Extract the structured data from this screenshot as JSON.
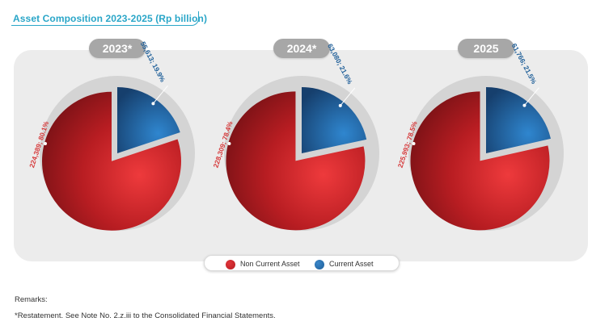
{
  "title": "Asset Composition 2023-2025 (Rp billion)",
  "colors": {
    "non_current": "#b81d22",
    "current": "#1f5f99",
    "title": "#2aa6c8",
    "panel": "#ececec",
    "pill": "#a7a7a7"
  },
  "chart_data": [
    {
      "type": "pie",
      "title": "2023*",
      "slices": [
        {
          "name": "Non Current Asset",
          "value": 224389,
          "percent": 80.1,
          "label": "224,389; 80.1%"
        },
        {
          "name": "Current Asset",
          "value": 55613,
          "percent": 19.9,
          "label": "55,613; 19.9%"
        }
      ]
    },
    {
      "type": "pie",
      "title": "2024*",
      "slices": [
        {
          "name": "Non Current Asset",
          "value": 228309,
          "percent": 78.4,
          "label": "228,309; 78.4%"
        },
        {
          "name": "Current Asset",
          "value": 63080,
          "percent": 21.6,
          "label": "63,080; 21.6%"
        }
      ]
    },
    {
      "type": "pie",
      "title": "2025",
      "slices": [
        {
          "name": "Non Current Asset",
          "value": 225993,
          "percent": 78.5,
          "label": "225,993; 78.5%"
        },
        {
          "name": "Current Asset",
          "value": 61766,
          "percent": 21.5,
          "label": "61,766; 21.5%"
        }
      ]
    }
  ],
  "legend": [
    "Non Current Asset",
    "Current Asset"
  ],
  "remarks": {
    "heading": "Remarks:",
    "note": "*Restatement. See Note No. 2.z.iii to the Consolidated Financial Statements."
  }
}
